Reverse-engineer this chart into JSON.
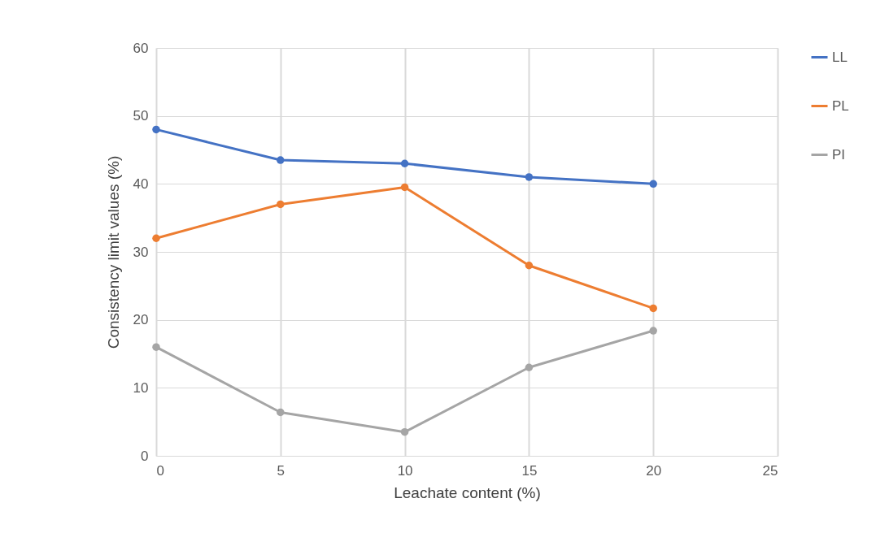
{
  "chart_data": {
    "type": "line",
    "xlabel": "Leachate content (%)",
    "ylabel": "Consistency limit values (%)",
    "x": [
      0,
      5,
      10,
      15,
      20
    ],
    "series": [
      {
        "name": "LL",
        "color": "#4472c4",
        "values": [
          48,
          43.5,
          43,
          41,
          40
        ]
      },
      {
        "name": "PL",
        "color": "#ed7d31",
        "values": [
          32,
          37,
          39.5,
          28,
          21.7
        ]
      },
      {
        "name": "PI",
        "color": "#a5a5a5",
        "values": [
          16,
          6.4,
          3.5,
          13,
          18.4
        ]
      }
    ],
    "xlim": [
      0,
      25
    ],
    "xticks": [
      0,
      5,
      10,
      15,
      20,
      25
    ],
    "ylim": [
      0,
      60
    ],
    "yticks": [
      0,
      10,
      20,
      30,
      40,
      50,
      60
    ],
    "grid": true,
    "legend": "right",
    "marker": "circle",
    "line_style": "solid"
  }
}
